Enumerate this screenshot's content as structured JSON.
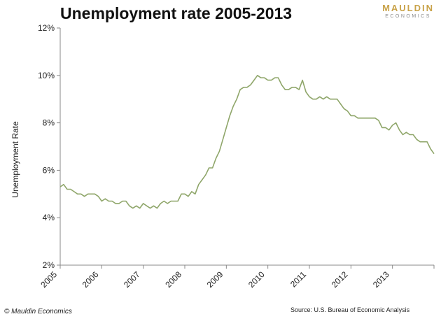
{
  "header": {
    "title": "Unemployment rate 2005-2013",
    "logo_top": "MAULDIN",
    "logo_bottom": "ECONOMICS"
  },
  "footer": {
    "copyright": "© Mauldin Economics",
    "source": "Source: U.S. Bureau of Economic Analysis"
  },
  "colors": {
    "line": "#8fa66a",
    "axis": "#888888",
    "logo_gold": "#c9a34a",
    "logo_gray": "#8a8a8a"
  },
  "chart_data": {
    "type": "line",
    "title": "Unemployment rate 2005-2013",
    "xlabel": "",
    "ylabel": "Unemployment Rate",
    "ylim": [
      2,
      12
    ],
    "xlim": [
      2005,
      2014
    ],
    "grid": false,
    "legend": "none",
    "y_ticks": [
      "2%",
      "4%",
      "6%",
      "8%",
      "10%",
      "12%"
    ],
    "y_tick_values": [
      2,
      4,
      6,
      8,
      10,
      12
    ],
    "x_ticks": [
      "2005",
      "2006",
      "2007",
      "2008",
      "2009",
      "2010",
      "2011",
      "2012",
      "2013"
    ],
    "x_tick_values": [
      2005,
      2006,
      2007,
      2008,
      2009,
      2010,
      2011,
      2012,
      2013
    ],
    "series": [
      {
        "start_year": 2005,
        "frequency": "monthly",
        "values": [
          5.3,
          5.4,
          5.2,
          5.2,
          5.1,
          5.0,
          5.0,
          4.9,
          5.0,
          5.0,
          5.0,
          4.9,
          4.7,
          4.8,
          4.7,
          4.7,
          4.6,
          4.6,
          4.7,
          4.7,
          4.5,
          4.4,
          4.5,
          4.4,
          4.6,
          4.5,
          4.4,
          4.5,
          4.4,
          4.6,
          4.7,
          4.6,
          4.7,
          4.7,
          4.7,
          5.0,
          5.0,
          4.9,
          5.1,
          5.0,
          5.4,
          5.6,
          5.8,
          6.1,
          6.1,
          6.5,
          6.8,
          7.3,
          7.8,
          8.3,
          8.7,
          9.0,
          9.4,
          9.5,
          9.5,
          9.6,
          9.8,
          10.0,
          9.9,
          9.9,
          9.8,
          9.8,
          9.9,
          9.9,
          9.6,
          9.4,
          9.4,
          9.5,
          9.5,
          9.4,
          9.8,
          9.3,
          9.1,
          9.0,
          9.0,
          9.1,
          9.0,
          9.1,
          9.0,
          9.0,
          9.0,
          8.8,
          8.6,
          8.5,
          8.3,
          8.3,
          8.2,
          8.2,
          8.2,
          8.2,
          8.2,
          8.2,
          8.1,
          7.8,
          7.8,
          7.7,
          7.9,
          8.0,
          7.7,
          7.5,
          7.6,
          7.5,
          7.5,
          7.3,
          7.2,
          7.2,
          7.2,
          6.9,
          6.7
        ]
      }
    ]
  }
}
